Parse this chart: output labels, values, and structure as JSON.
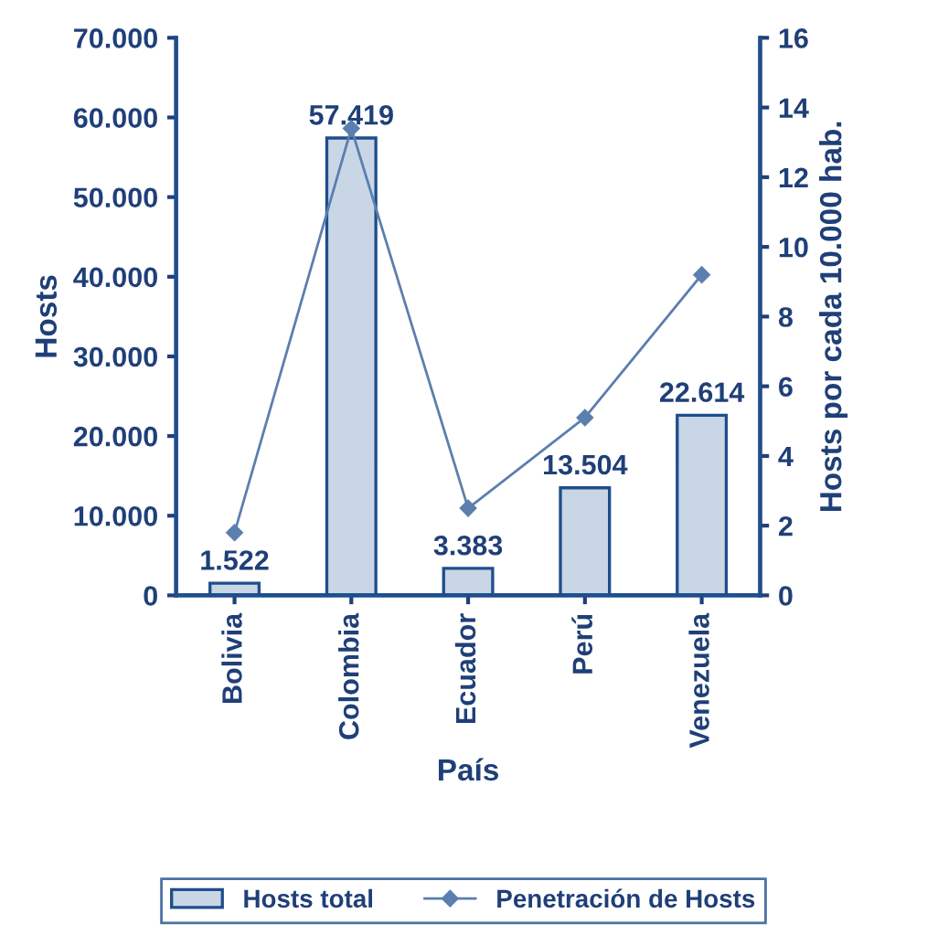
{
  "chart_data": {
    "type": "bar",
    "xlabel": "País",
    "ylabel": "Hosts",
    "y2label": "Hosts por cada 10.000 hab.",
    "categories": [
      "Bolivia",
      "Colombia",
      "Ecuador",
      "Perú",
      "Venezuela"
    ],
    "series": [
      {
        "name": "Hosts total",
        "color": "#c9d6e6",
        "values": [
          1522,
          57419,
          3383,
          13504,
          22614
        ],
        "value_labels": [
          "1.522",
          "57.419",
          "3.383",
          "13.504",
          "22.614"
        ]
      },
      {
        "name": "Penetración de Hosts",
        "type": "line",
        "axis": "y2",
        "color": "#5b7fae",
        "marker": "diamond",
        "values": [
          1.8,
          13.4,
          2.5,
          5.1,
          9.2
        ]
      }
    ],
    "ylim": [
      0,
      70000
    ],
    "yticks": [
      0,
      {
        "value": 10000,
        "label": "10.000"
      },
      {
        "value": 20000,
        "label": "20.000"
      },
      {
        "value": 30000,
        "label": "30.000"
      },
      {
        "value": 40000,
        "label": "40.000"
      },
      {
        "value": 50000,
        "label": "50.000"
      },
      {
        "value": 60000,
        "label": "60.000"
      },
      {
        "value": 70000,
        "label": "70.000"
      }
    ],
    "y2lim": [
      0,
      16
    ],
    "y2ticks": [
      0,
      2,
      4,
      6,
      8,
      10,
      12,
      14,
      16
    ],
    "grid": false,
    "legend": "bottom"
  }
}
